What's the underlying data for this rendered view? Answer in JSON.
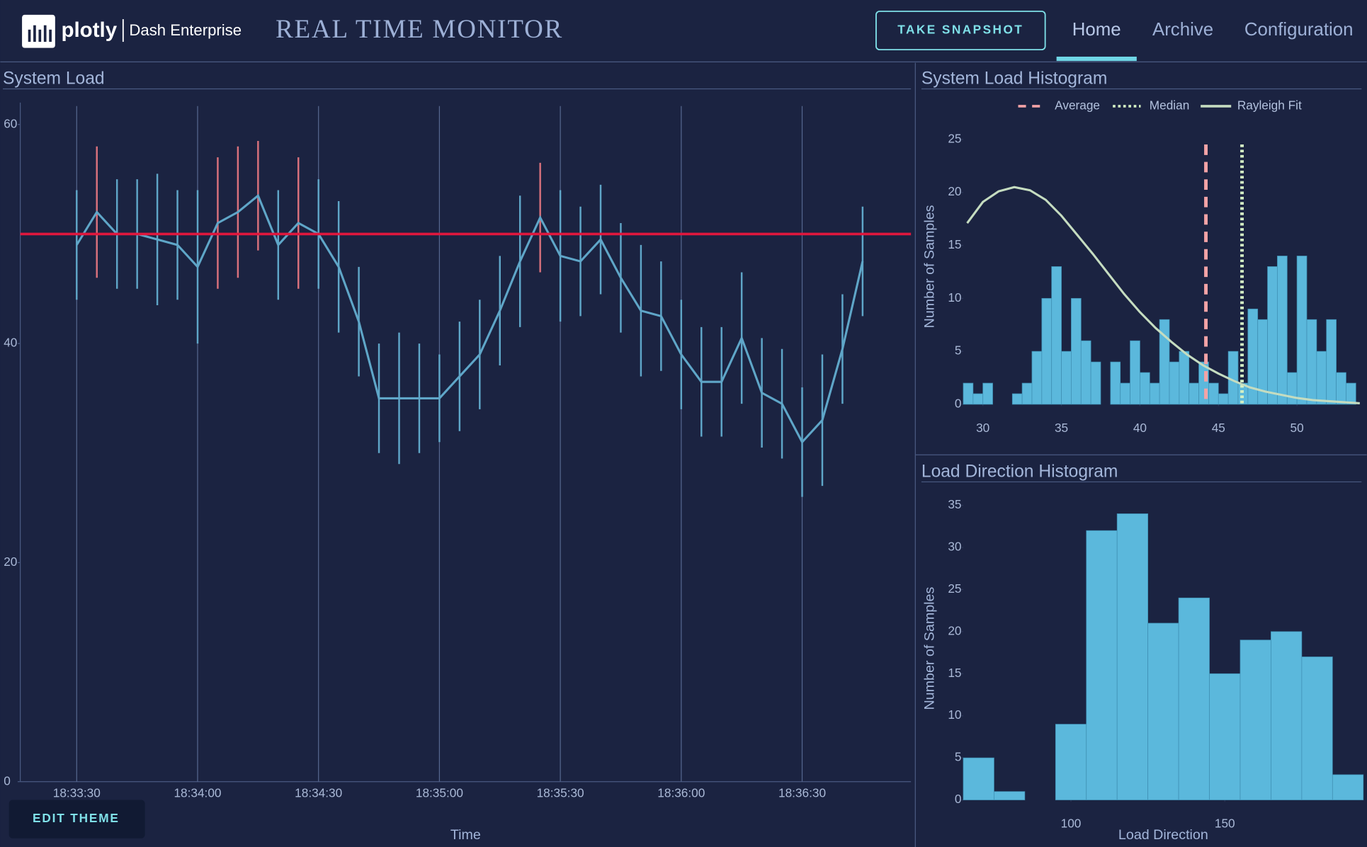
{
  "header": {
    "brand": "plotly",
    "product": "Dash Enterprise",
    "title": "REAL TIME MONITOR",
    "button": "TAKE SNAPSHOT",
    "nav": [
      "Home",
      "Archive",
      "Configuration"
    ]
  },
  "edit_theme": "EDIT THEME",
  "chart_data": [
    {
      "type": "line",
      "title": "System Load",
      "xlabel": "Time",
      "x": [
        "18:33:30",
        "18:33:35",
        "18:33:40",
        "18:33:45",
        "18:33:50",
        "18:33:55",
        "18:34:00",
        "18:34:05",
        "18:34:10",
        "18:34:15",
        "18:34:20",
        "18:34:25",
        "18:34:30",
        "18:34:35",
        "18:34:40",
        "18:34:45",
        "18:34:50",
        "18:34:55",
        "18:35:00",
        "18:35:05",
        "18:35:10",
        "18:35:15",
        "18:35:20",
        "18:35:25",
        "18:35:30",
        "18:35:35",
        "18:35:40",
        "18:35:45",
        "18:35:50",
        "18:35:55",
        "18:36:00",
        "18:36:05",
        "18:36:10",
        "18:36:15",
        "18:36:20",
        "18:36:25",
        "18:36:30",
        "18:36:35",
        "18:36:40",
        "18:36:45"
      ],
      "values": [
        49,
        52,
        50,
        50,
        49.5,
        49,
        47,
        51,
        52,
        53.5,
        49,
        51,
        50,
        47,
        42,
        35,
        35,
        35,
        35,
        37,
        39,
        43,
        47.5,
        51.5,
        48,
        47.5,
        49.5,
        46,
        43,
        42.5,
        39,
        36.5,
        36.5,
        40.5,
        35.5,
        34.5,
        31,
        33,
        39.5,
        47.5
      ],
      "errors": [
        5,
        6,
        5,
        5,
        6,
        5,
        7,
        6,
        6,
        5,
        5,
        6,
        5,
        6,
        5,
        5,
        6,
        5,
        4,
        5,
        5,
        5,
        6,
        5,
        6,
        5,
        5,
        5,
        6,
        5,
        5,
        5,
        5,
        6,
        5,
        5,
        5,
        6,
        5,
        5
      ],
      "color": "#5fa6c8",
      "above_color": "#d9717c",
      "threshold": 50,
      "threshold_color": "#e0173d",
      "xlim": [
        "18:33:16",
        "18:36:57"
      ],
      "xticks": [
        "18:33:30",
        "18:34:00",
        "18:34:30",
        "18:35:00",
        "18:35:30",
        "18:36:00",
        "18:36:30"
      ],
      "ylim": [
        0,
        62
      ],
      "yticks": [
        0,
        20,
        40,
        60
      ],
      "grid": "x"
    },
    {
      "type": "histogram",
      "title": "System Load Histogram",
      "ylabel": "Number of Samples",
      "bins": [
        28.75,
        29.375,
        30,
        30.625,
        31.25,
        31.875,
        32.5,
        33.125,
        33.75,
        34.375,
        35,
        35.625,
        36.25,
        36.875,
        37.5,
        38.125,
        38.75,
        39.375,
        40,
        40.625,
        41.25,
        41.875,
        42.5,
        43.125,
        43.75,
        44.375,
        45,
        45.625,
        46.25,
        46.875,
        47.5,
        48.125,
        48.75,
        49.375,
        50,
        50.625,
        51.25,
        51.875,
        52.5,
        53.125,
        53.75
      ],
      "counts": [
        2,
        1,
        2,
        0,
        0,
        1,
        2,
        5,
        10,
        13,
        5,
        10,
        6,
        4,
        0,
        4,
        2,
        6,
        3,
        2,
        8,
        4,
        5,
        2,
        4,
        2,
        1,
        5,
        2,
        9,
        8,
        13,
        14,
        3,
        14,
        8,
        5,
        8,
        3,
        2
      ],
      "color": "#5bb8dc",
      "xlim": [
        28.75,
        54
      ],
      "xticks": [
        30,
        35,
        40,
        45,
        50
      ],
      "ylim": [
        0,
        26
      ],
      "yticks": [
        0,
        5,
        10,
        15,
        20,
        25
      ],
      "legend": "top",
      "lines": [
        {
          "name": "Average",
          "value": 44.2,
          "color": "#f4a3a6",
          "dash": "dash"
        },
        {
          "name": "Median",
          "value": 46.5,
          "color": "#d4f0c4",
          "dash": "dot"
        }
      ],
      "fit": {
        "name": "Rayleigh Fit",
        "color": "#c5dcc0",
        "x": [
          29,
          30,
          31,
          32,
          33,
          34,
          35,
          36,
          37,
          38,
          39,
          40,
          41,
          42,
          43,
          44,
          45,
          46,
          47,
          48,
          49,
          50,
          51,
          52,
          53,
          54
        ],
        "values": [
          17.1,
          19.1,
          20.1,
          20.5,
          20.2,
          19.3,
          17.8,
          16,
          14.2,
          12.3,
          10.4,
          8.7,
          7.2,
          5.9,
          4.7,
          3.7,
          2.9,
          2.2,
          1.6,
          1.2,
          0.9,
          0.6,
          0.4,
          0.3,
          0.2,
          0.1
        ]
      }
    },
    {
      "type": "histogram",
      "title": "Load Direction Histogram",
      "xlabel": "Load Direction",
      "ylabel": "Number of Samples",
      "bins": [
        65,
        75,
        85,
        95,
        105,
        115,
        125,
        135,
        145,
        155,
        165,
        175,
        185,
        195
      ],
      "counts": [
        5,
        1,
        0,
        9,
        32,
        34,
        21,
        24,
        15,
        19,
        20,
        17,
        3
      ],
      "color": "#5bb8dc",
      "xlim": [
        65,
        195
      ],
      "xticks": [
        100,
        150
      ],
      "ylim": [
        0,
        36
      ],
      "yticks": [
        0,
        5,
        10,
        15,
        20,
        25,
        30,
        35
      ]
    }
  ]
}
